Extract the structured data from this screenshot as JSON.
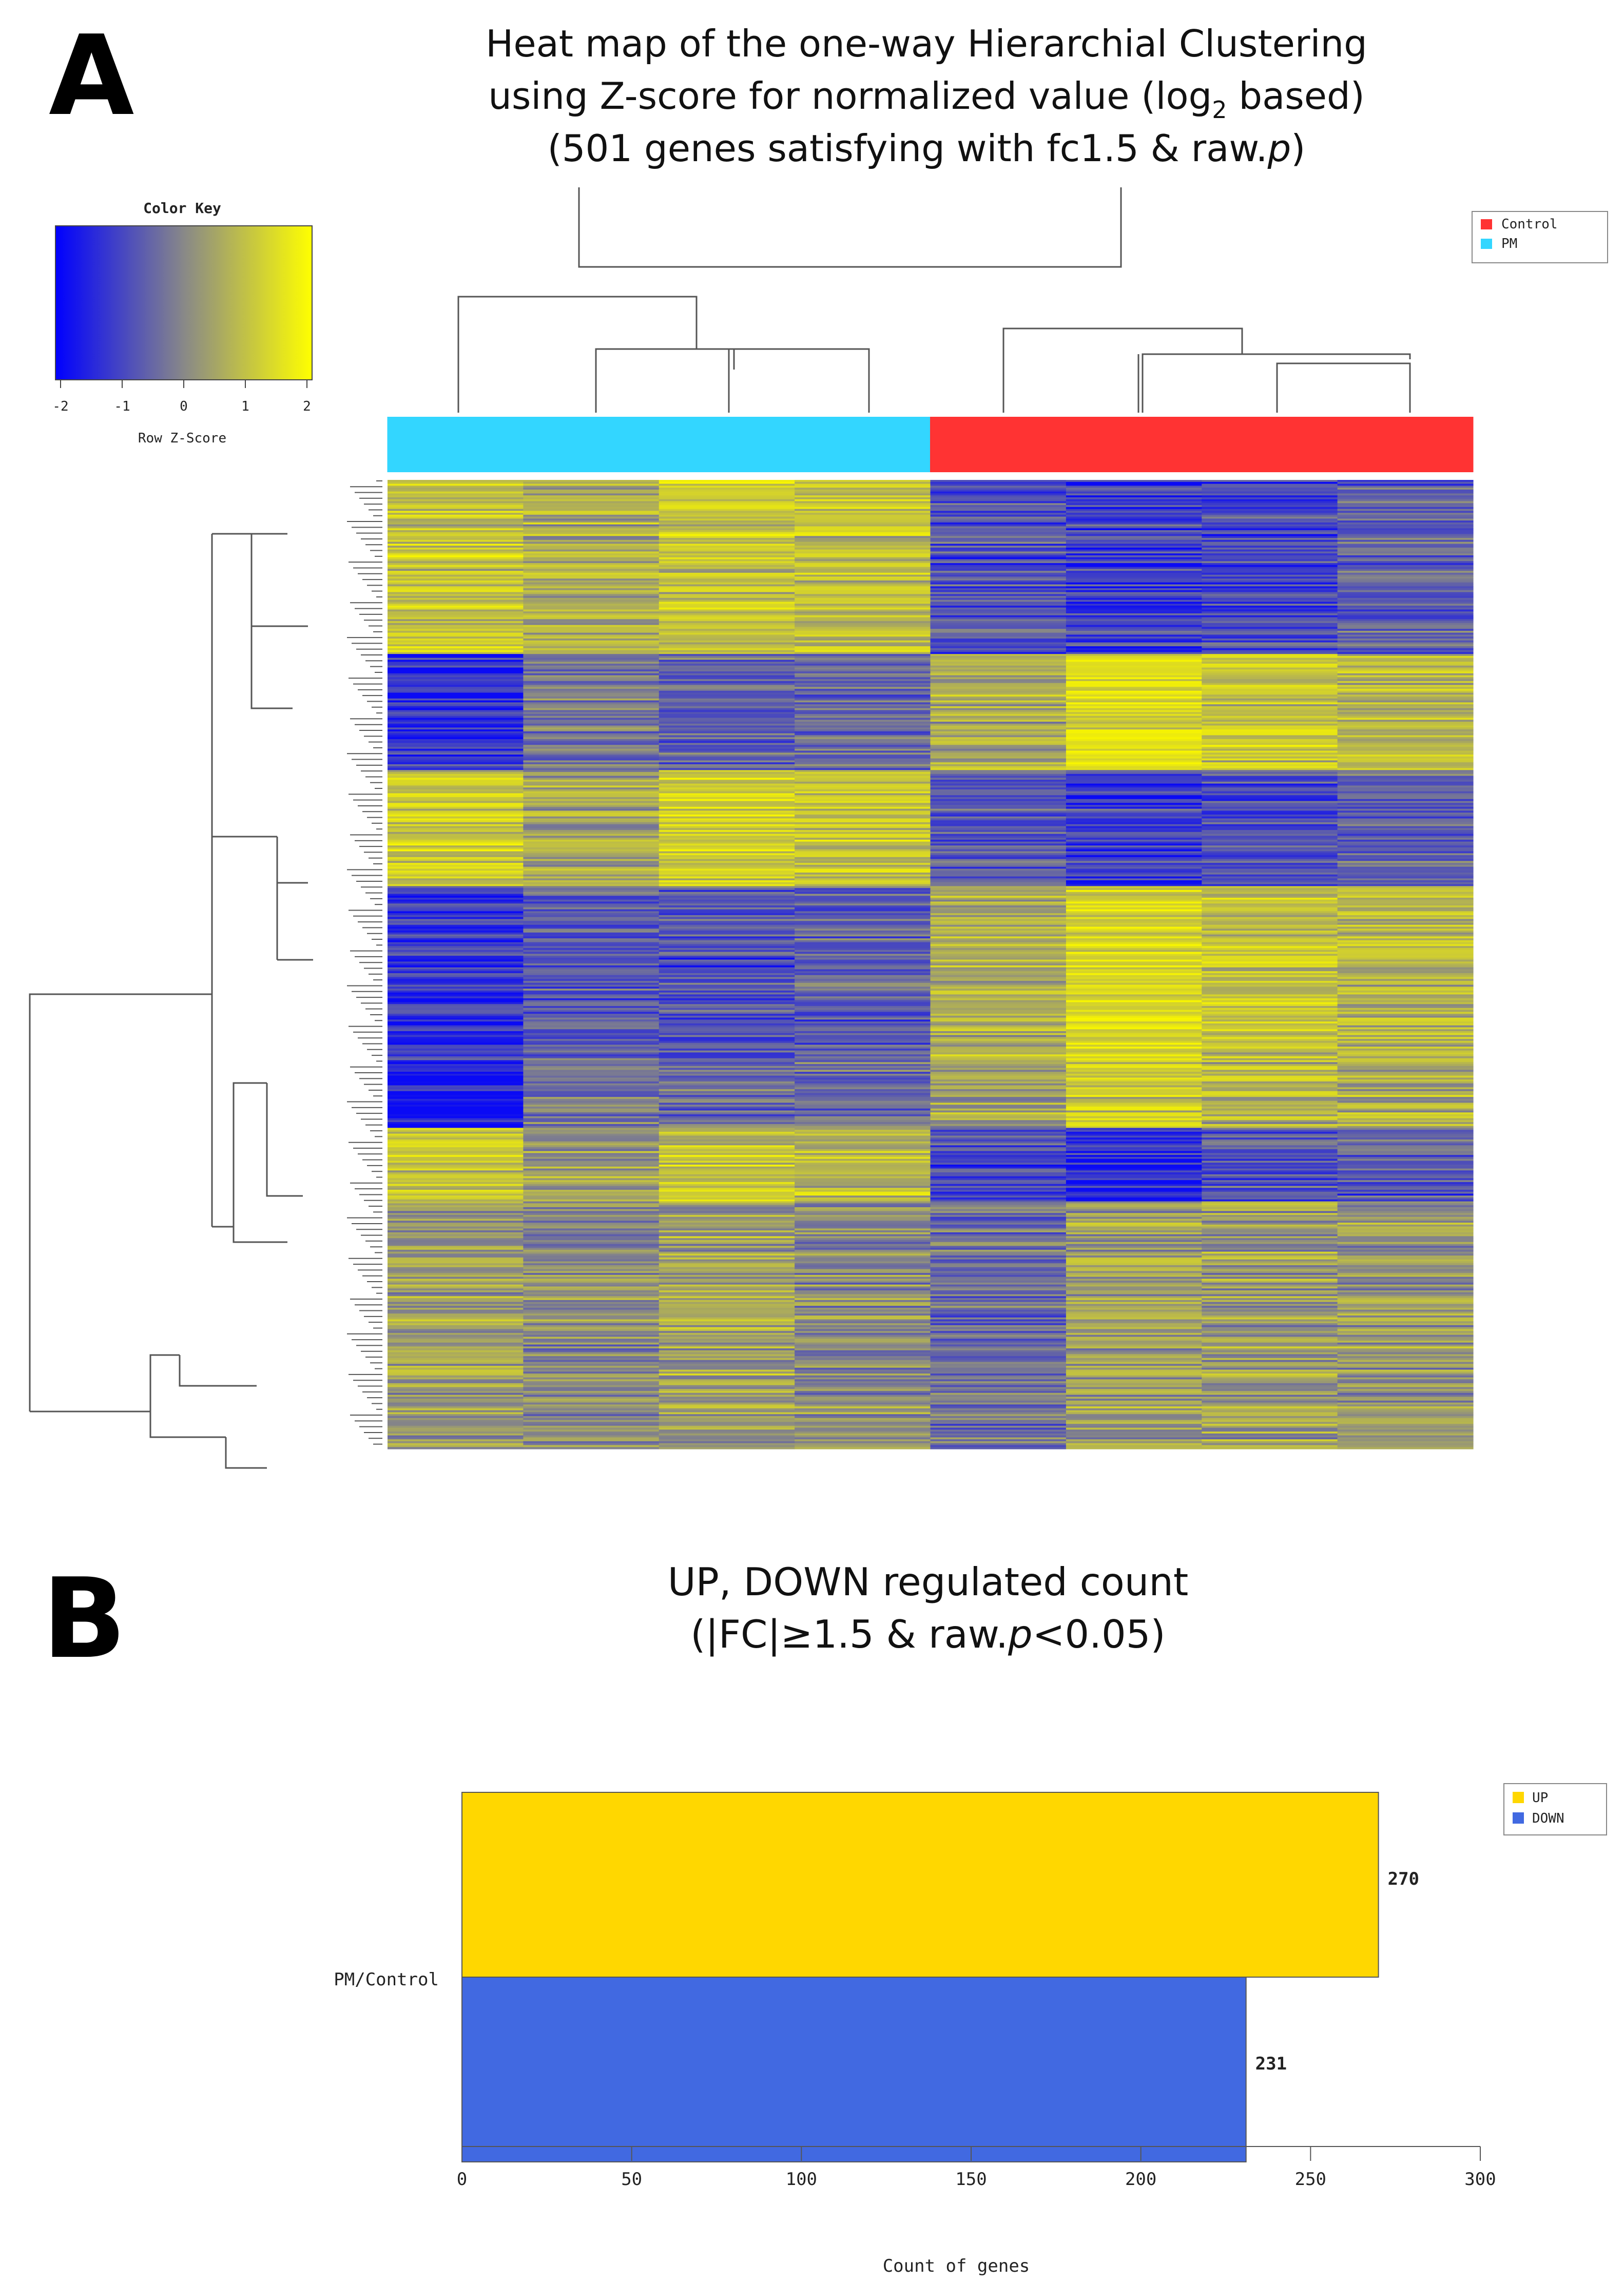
{
  "panel_a": {
    "label": "A",
    "title_line1": "Heat map of the one-way Hierarchial Clustering",
    "title_line2_before": "using Z-score for normalized value (log",
    "title_line2_sub": "2",
    "title_line2_after": " based)",
    "title_line3_before": "(501 genes satisfying with fc1.5 & raw.",
    "title_line3_italic": "p",
    "title_line3_after": ")"
  },
  "panel_b": {
    "label": "B",
    "title_line1": "UP, DOWN regulated count",
    "title_line2_before": "(|FC|≥1.5 & raw.",
    "title_line2_italic": "p",
    "title_line2_after": "<0.05)"
  },
  "colors": {
    "low": "#0a0af5",
    "mid": "#8c8c82",
    "high": "#f8f500",
    "pm": "#33d6ff",
    "control": "#ff3333",
    "up": "#ffd700",
    "down": "#4169e1",
    "dendrogram": "#555555"
  },
  "chart_data": [
    {
      "type": "heatmap",
      "title": "Heat map of the one-way Hierarchial Clustering using Z-score for normalized value (log2 based) (501 genes satisfying with fc1.5 & raw.p)",
      "color_key": {
        "title": "Color Key",
        "xlabel": "Row Z-Score",
        "ticks": [
          "-2",
          "-1",
          "0",
          "1",
          "2"
        ],
        "range": [
          -2,
          2
        ]
      },
      "legend": {
        "position": "top-right",
        "entries": [
          {
            "name": "Control",
            "color": "#ff3333"
          },
          {
            "name": "PM",
            "color": "#33d6ff"
          }
        ]
      },
      "n_genes": 501,
      "columns": [
        {
          "group": "PM"
        },
        {
          "group": "PM"
        },
        {
          "group": "PM"
        },
        {
          "group": "PM"
        },
        {
          "group": "Control"
        },
        {
          "group": "Control"
        },
        {
          "group": "Control"
        },
        {
          "group": "Control"
        }
      ],
      "row_blocks": [
        {
          "rows": 90,
          "values": [
            1.0,
            0.6,
            1.0,
            0.9,
            -1.0,
            -1.3,
            -1.1,
            -0.8
          ]
        },
        {
          "rows": 60,
          "values": [
            -1.6,
            -0.4,
            -0.7,
            -0.5,
            0.5,
            1.4,
            1.0,
            0.7
          ]
        },
        {
          "rows": 60,
          "values": [
            1.1,
            0.4,
            1.2,
            0.9,
            -0.9,
            -1.3,
            -1.0,
            -0.8
          ]
        },
        {
          "rows": 90,
          "values": [
            -1.4,
            -0.8,
            -1.0,
            -0.8,
            0.6,
            1.4,
            0.9,
            0.7
          ]
        },
        {
          "rows": 35,
          "values": [
            -1.9,
            -0.3,
            -0.6,
            -0.5,
            0.4,
            1.0,
            0.6,
            0.6
          ]
        },
        {
          "rows": 38,
          "values": [
            1.0,
            0.3,
            1.0,
            0.8,
            -1.1,
            -1.6,
            -1.0,
            -0.9
          ]
        },
        {
          "rows": 128,
          "values": [
            0.3,
            0.0,
            0.4,
            0.0,
            -0.6,
            0.3,
            0.3,
            0.2
          ]
        }
      ]
    },
    {
      "type": "bar",
      "orientation": "horizontal",
      "title": "UP, DOWN regulated count (|FC|≥1.5 & raw.p<0.05)",
      "categories": [
        "PM/Control"
      ],
      "series": [
        {
          "name": "UP",
          "color": "#ffd700",
          "values": [
            270
          ],
          "label": "270"
        },
        {
          "name": "DOWN",
          "color": "#4169e1",
          "values": [
            231
          ],
          "label": "231"
        }
      ],
      "xlabel": "Count of genes",
      "xlim": [
        0,
        300
      ],
      "xticks": [
        "0",
        "50",
        "100",
        "150",
        "200",
        "250",
        "300"
      ],
      "legend": {
        "position": "top-right",
        "entries": [
          {
            "name": "UP",
            "color": "#ffd700"
          },
          {
            "name": "DOWN",
            "color": "#4169e1"
          }
        ]
      }
    }
  ]
}
